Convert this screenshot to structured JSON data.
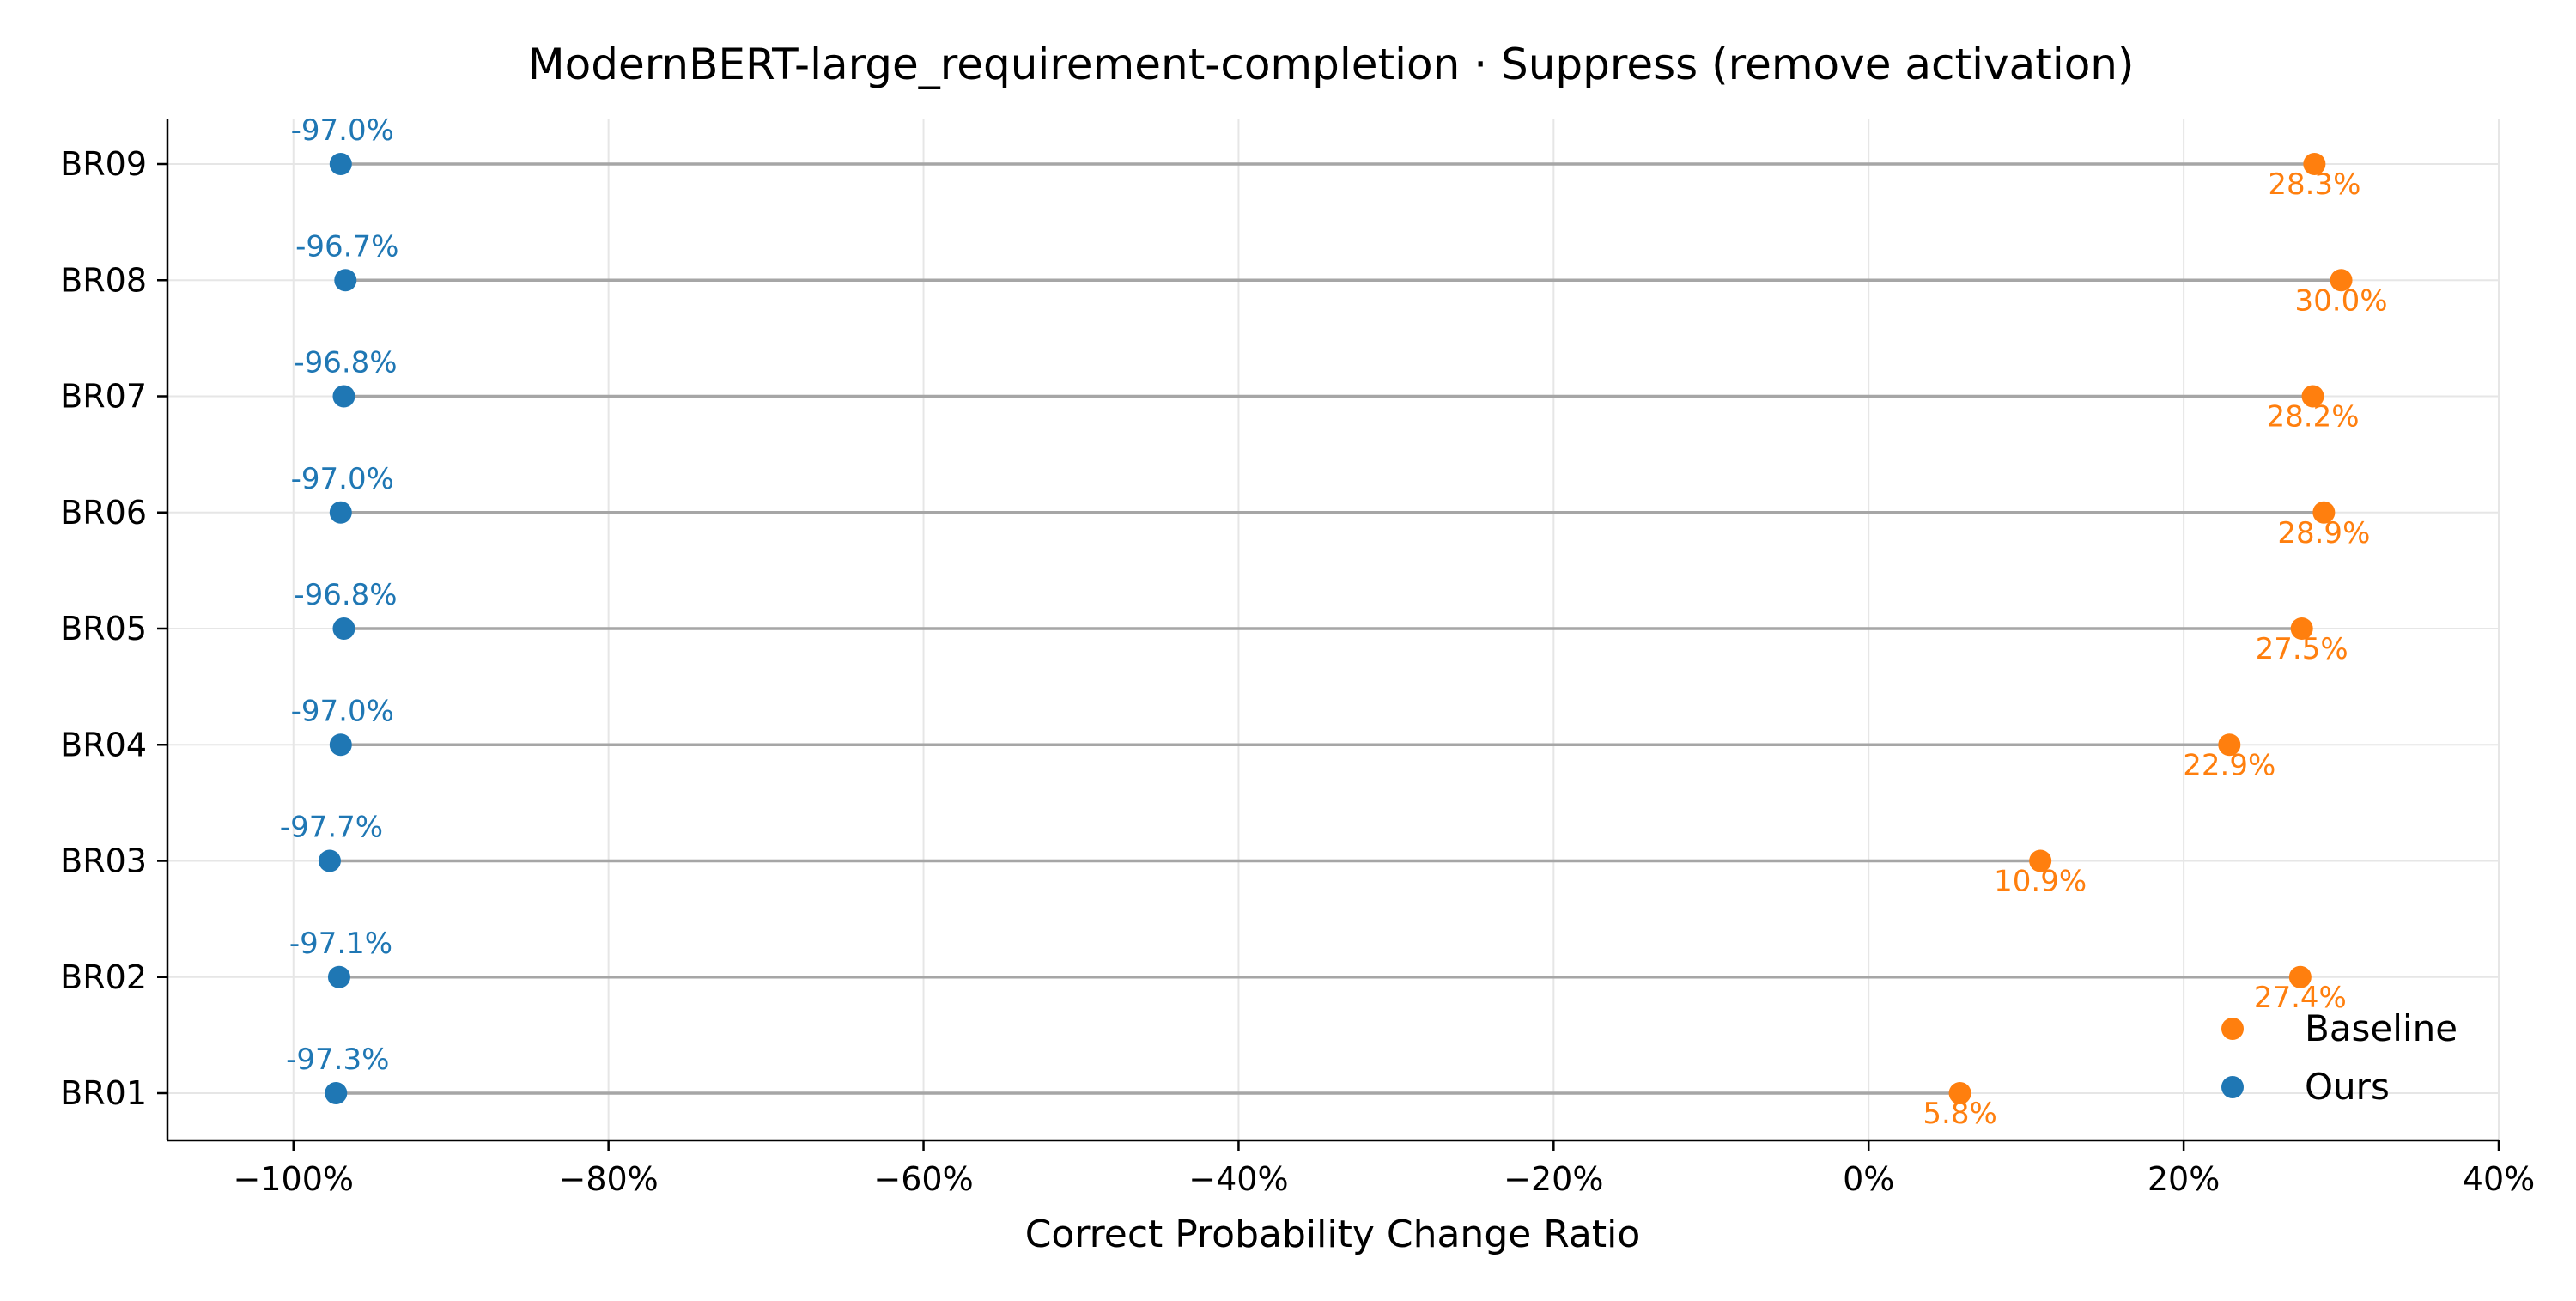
{
  "chart_data": {
    "type": "scatter",
    "style": "dumbbell",
    "title": "ModernBERT-large_requirement-completion · Suppress (remove activation)",
    "xlabel": "Correct Probability Change Ratio",
    "ylabel": "",
    "xlim": [
      -108,
      40
    ],
    "x_ticks": [
      -100,
      -80,
      -60,
      -40,
      -20,
      0,
      20,
      40
    ],
    "x_tick_labels": [
      "−100%",
      "−80%",
      "−60%",
      "−40%",
      "−20%",
      "0%",
      "20%",
      "40%"
    ],
    "categories": [
      "BR01",
      "BR02",
      "BR03",
      "BR04",
      "BR05",
      "BR06",
      "BR07",
      "BR08",
      "BR09"
    ],
    "series": [
      {
        "name": "Baseline",
        "color": "#ff7f0e",
        "values": [
          5.8,
          27.4,
          10.9,
          22.9,
          27.5,
          28.9,
          28.2,
          30.0,
          28.3
        ],
        "labels": [
          "5.8%",
          "27.4%",
          "10.9%",
          "22.9%",
          "27.5%",
          "28.9%",
          "28.2%",
          "30.0%",
          "28.3%"
        ]
      },
      {
        "name": "Ours",
        "color": "#1f77b4",
        "values": [
          -97.3,
          -97.1,
          -97.7,
          -97.0,
          -96.8,
          -97.0,
          -96.8,
          -96.7,
          -97.0
        ],
        "labels": [
          "-97.3%",
          "-97.1%",
          "-97.7%",
          "-97.0%",
          "-96.8%",
          "-97.0%",
          "-96.8%",
          "-96.7%",
          "-97.0%"
        ]
      }
    ],
    "connector_color": "#a6a6a6",
    "grid": true,
    "legend_position": "lower-right"
  }
}
